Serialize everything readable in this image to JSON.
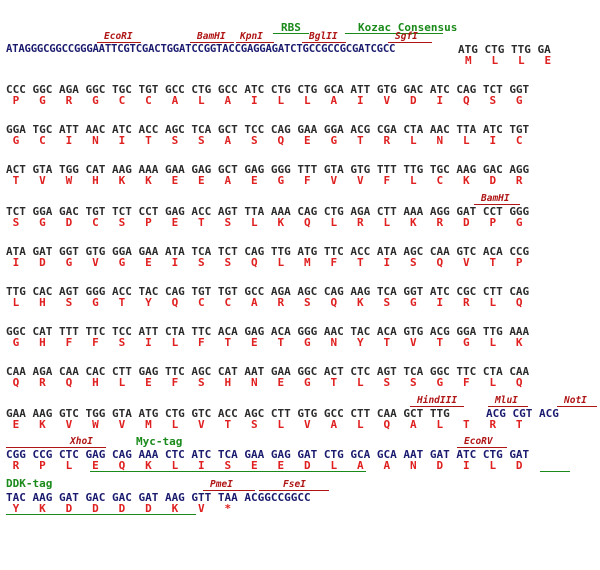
{
  "colors": {
    "nucleotide": "#1a1a6e",
    "nucleotide_alt": "#2b2b2b",
    "amino_acid": "#e02020",
    "restriction_site": "#b01515",
    "feature": "#1a8a1a"
  },
  "row1_seq": "ATAGGGCGGCCGGGAATTCGTCGACTGGATCCGGTACCGAGGAGATCTGCCGCCGCGATCGCC",
  "row1_codons": "ATG CTG TTG GA",
  "row1_aa": "M   L   L   E",
  "row1_annot": {
    "rbs": "RBS",
    "kozac": "Kozac Consensus",
    "ecori": "EcoRI",
    "bamhi": "BamHI",
    "kpni": "KpnI",
    "bglii": "BglII",
    "sgfi": "SgfI"
  },
  "rows": [
    {
      "nt": "CCC GGC AGA GGC TGC TGT GCC CTG GCC ATC CTG CTG GCA ATT GTG GAC ATC CAG TCT GGT",
      "aa": " P   G   R   G   C   C   A   L   A   I   L   L   A   I   V   D   I   Q   S   G"
    },
    {
      "nt": "GGA TGC ATT AAC ATC ACC AGC TCA GCT TCC CAG GAA GGA ACG CGA CTA AAC TTA ATC TGT",
      "aa": " G   C   I   N   I   T   S   S   A   S   Q   E   G   T   R   L   N   L   I   C"
    },
    {
      "nt": "ACT GTA TGG CAT AAG AAA GAA GAG GCT GAG GGG TTT GTA GTG TTT TTG TGC AAG GAC AGG",
      "aa": " T   V   W   H   K   K   E   E   A   E   G   F   V   V   F   L   C   K   D   R"
    },
    {
      "nt": "TCT GGA GAC TGT TCT CCT GAG ACC AGT TTA AAA CAG CTG AGA CTT AAA AGG GAT CCT GGG",
      "aa": " S   G   D   C   S   P   E   T   S   L   K   Q   L   R   L   K   R   D   P   G"
    },
    {
      "nt": "ATA GAT GGT GTG GGA GAA ATA TCA TCT CAG TTG ATG TTC ACC ATA AGC CAA GTC ACA CCG",
      "aa": " I   D   G   V   G   E   I   S   S   Q   L   M   F   T   I   S   Q   V   T   P"
    },
    {
      "nt": "TTG CAC AGT GGG ACC TAC CAG TGT TGT GCC AGA AGC CAG AAG TCA GGT ATC CGC CTT CAG",
      "aa": " L   H   S   G   T   Y   Q   C   C   A   R   S   Q   K   S   G   I   R   L   Q"
    },
    {
      "nt": "GGC CAT TTT TTC TCC ATT CTA TTC ACA GAG ACA GGG AAC TAC ACA GTG ACG GGA TTG AAA",
      "aa": " G   H   F   F   S   I   L   F   T   E   T   G   N   Y   T   V   T   G   L   K"
    },
    {
      "nt": "CAA AGA CAA CAC CTT GAG TTC AGC CAT AAT GAA GGC ACT CTC AGT TCA GGC TTC CTA CAA",
      "aa": " Q   R   Q   H   L   E   F   S   H   N   E   G   T   L   S   S   G   F   L   Q"
    },
    {
      "nt": "GAA AAG GTC TGG GTA ATG CTG GTC ACC AGC CTT GTG GCC CTT CAA GCT TTG",
      "aa": " E   K   V   W   V   M   L   V   T   S   L   V   A   L   Q   A   L   T   R   T"
    }
  ],
  "row10_blue": "ACG CGT ACG",
  "row10_annot": {
    "hindiii": "HindIII",
    "mlui": "MluI",
    "noti": "NotI",
    "bamhi": "BamHI"
  },
  "row11": {
    "nt": "CGG CCG CTC GAG CAG AAA CTC ATC TCA GAA GAG GAT CTG GCA GCA AAT GAT ATC CTG GAT",
    "aa": " R   P   L   E   Q   K   L   I   S   E   E   D   L   A   A   N   D   I   L   D"
  },
  "row11_annot": {
    "xhoi": "XhoI",
    "myc": "Myc-tag",
    "ecorv": "EcoRV"
  },
  "row12": {
    "nt": "TAC AAG GAT GAC GAC GAT AAG GTT TAA ACGGCCGGCC",
    "aa": " Y   K   D   D   D   D   K   V   *"
  },
  "row12_annot": {
    "ddk": "DDK-tag",
    "pmei": "PmeI",
    "fsei": "FseI"
  }
}
